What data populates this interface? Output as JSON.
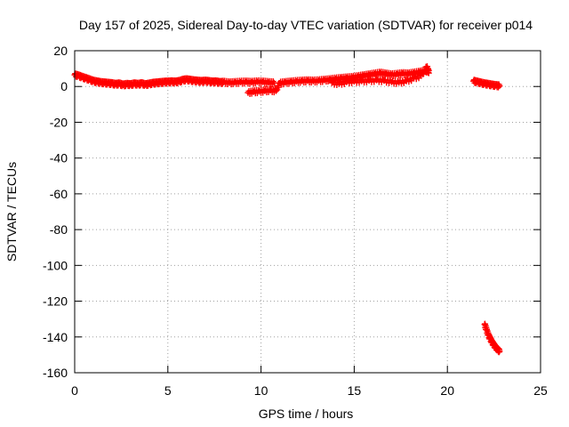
{
  "chart_data": {
    "type": "scatter",
    "title": "Day 157 of 2025, Sidereal Day-to-day VTEC variation (SDTVAR) for receiver p014",
    "xlabel": "GPS time / hours",
    "ylabel": "SDTVAR / TECUs",
    "xlim": [
      0,
      25
    ],
    "ylim": [
      -160,
      20
    ],
    "xticks": [
      0,
      5,
      10,
      15,
      20,
      25
    ],
    "yticks": [
      20,
      0,
      -20,
      -40,
      -60,
      -80,
      -100,
      -120,
      -140,
      -160
    ],
    "grid": true,
    "marker": "+",
    "color": "#ff0000",
    "series": [
      {
        "name": "SDTVAR",
        "points": [
          [
            0.0,
            6.5
          ],
          [
            0.2,
            6.0
          ],
          [
            0.4,
            5.2
          ],
          [
            0.6,
            4.5
          ],
          [
            0.8,
            3.8
          ],
          [
            1.0,
            3.0
          ],
          [
            1.2,
            2.6
          ],
          [
            1.4,
            2.2
          ],
          [
            1.6,
            2.0
          ],
          [
            1.8,
            1.8
          ],
          [
            2.0,
            1.6
          ],
          [
            2.2,
            1.2
          ],
          [
            2.4,
            1.5
          ],
          [
            2.6,
            0.8
          ],
          [
            2.8,
            1.2
          ],
          [
            3.0,
            1.0
          ],
          [
            3.2,
            1.5
          ],
          [
            3.4,
            1.2
          ],
          [
            3.6,
            1.6
          ],
          [
            3.8,
            1.0
          ],
          [
            4.0,
            1.4
          ],
          [
            4.2,
            1.8
          ],
          [
            4.4,
            2.0
          ],
          [
            4.6,
            2.2
          ],
          [
            4.8,
            2.4
          ],
          [
            5.0,
            2.5
          ],
          [
            5.2,
            2.6
          ],
          [
            5.4,
            2.5
          ],
          [
            5.6,
            2.8
          ],
          [
            5.8,
            3.5
          ],
          [
            6.0,
            3.8
          ],
          [
            6.2,
            3.5
          ],
          [
            6.4,
            3.2
          ],
          [
            6.6,
            3.0
          ],
          [
            6.8,
            2.8
          ],
          [
            7.0,
            3.0
          ],
          [
            7.2,
            2.8
          ],
          [
            7.4,
            2.5
          ],
          [
            7.6,
            2.6
          ],
          [
            7.8,
            2.2
          ],
          [
            8.0,
            2.4
          ],
          [
            8.3,
            2.0
          ],
          [
            8.6,
            2.2
          ],
          [
            8.9,
            2.4
          ],
          [
            9.2,
            2.5
          ],
          [
            9.5,
            2.3
          ],
          [
            9.8,
            2.6
          ],
          [
            10.1,
            2.5
          ],
          [
            10.4,
            2.2
          ],
          [
            10.7,
            2.0
          ],
          [
            9.3,
            -3.5
          ],
          [
            9.6,
            -3.0
          ],
          [
            9.9,
            -2.8
          ],
          [
            10.2,
            -2.5
          ],
          [
            10.5,
            -2.2
          ],
          [
            10.8,
            -2.5
          ],
          [
            11.0,
            1.8
          ],
          [
            11.3,
            2.2
          ],
          [
            11.6,
            2.5
          ],
          [
            11.9,
            2.8
          ],
          [
            12.2,
            3.0
          ],
          [
            12.5,
            3.2
          ],
          [
            12.8,
            3.0
          ],
          [
            13.1,
            3.2
          ],
          [
            13.4,
            3.5
          ],
          [
            13.7,
            3.8
          ],
          [
            14.0,
            4.2
          ],
          [
            14.3,
            4.5
          ],
          [
            14.6,
            4.8
          ],
          [
            14.9,
            5.0
          ],
          [
            15.2,
            5.5
          ],
          [
            15.5,
            6.0
          ],
          [
            15.8,
            6.5
          ],
          [
            16.1,
            7.0
          ],
          [
            16.4,
            7.5
          ],
          [
            16.7,
            7.0
          ],
          [
            17.0,
            6.5
          ],
          [
            17.3,
            6.8
          ],
          [
            17.6,
            7.2
          ],
          [
            17.9,
            7.0
          ],
          [
            18.2,
            7.5
          ],
          [
            18.5,
            8.0
          ],
          [
            18.8,
            8.5
          ],
          [
            19.0,
            9.0
          ],
          [
            13.8,
            2.0
          ],
          [
            14.2,
            1.5
          ],
          [
            14.6,
            2.5
          ],
          [
            15.0,
            2.8
          ],
          [
            15.4,
            3.0
          ],
          [
            15.8,
            3.2
          ],
          [
            16.2,
            3.5
          ],
          [
            16.6,
            3.2
          ],
          [
            17.0,
            2.5
          ],
          [
            17.4,
            2.2
          ],
          [
            17.8,
            3.0
          ],
          [
            18.2,
            4.5
          ],
          [
            18.6,
            6.0
          ],
          [
            18.9,
            11.0
          ],
          [
            19.0,
            7.5
          ],
          [
            21.4,
            3.0
          ],
          [
            21.6,
            2.5
          ],
          [
            21.8,
            2.0
          ],
          [
            22.0,
            1.5
          ],
          [
            22.2,
            1.2
          ],
          [
            22.4,
            0.8
          ],
          [
            22.6,
            0.5
          ],
          [
            22.8,
            0.3
          ],
          [
            22.0,
            -133
          ],
          [
            22.1,
            -136
          ],
          [
            22.2,
            -139
          ],
          [
            22.3,
            -141
          ],
          [
            22.4,
            -143
          ],
          [
            22.5,
            -144.5
          ],
          [
            22.6,
            -146
          ],
          [
            22.7,
            -147
          ],
          [
            22.8,
            -148
          ]
        ]
      }
    ]
  }
}
